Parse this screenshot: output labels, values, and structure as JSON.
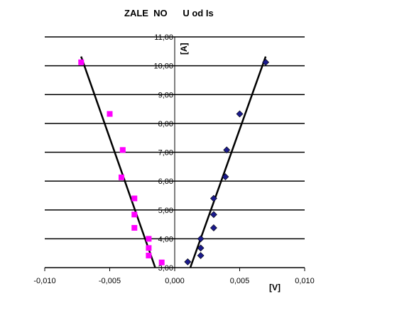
{
  "chart_data": {
    "type": "scatter",
    "title": "ZALE  NO      U od Is",
    "xlabel": "[V]",
    "ylabel": "[A]",
    "xlim": [
      -0.01,
      0.01
    ],
    "ylim": [
      3.0,
      11.0
    ],
    "x_ticks": [
      "-0,010",
      "-0,005",
      "0,000",
      "0,005",
      "0,010"
    ],
    "x_tick_values": [
      -0.01,
      -0.005,
      0.0,
      0.005,
      0.01
    ],
    "y_ticks": [
      "3,00",
      "4,00",
      "5,00",
      "6,00",
      "7,00",
      "8,00",
      "9,00",
      "10,00",
      "11,00"
    ],
    "y_tick_values": [
      3,
      4,
      5,
      6,
      7,
      8,
      9,
      10,
      11
    ],
    "grid": "horizontal",
    "legend": "none",
    "series": [
      {
        "marker": "square",
        "color": "#ff00ff",
        "points": [
          [
            -0.0072,
            10.12
          ],
          [
            -0.005,
            8.33
          ],
          [
            -0.004,
            7.08
          ],
          [
            -0.0041,
            6.13
          ],
          [
            -0.0031,
            5.4
          ],
          [
            -0.0031,
            4.84
          ],
          [
            -0.0031,
            4.38
          ],
          [
            -0.002,
            4.0
          ],
          [
            -0.002,
            3.68
          ],
          [
            -0.002,
            3.42
          ],
          [
            -0.001,
            3.18
          ]
        ]
      },
      {
        "marker": "diamond",
        "color": "#1a1a8c",
        "points": [
          [
            0.007,
            10.12
          ],
          [
            0.005,
            8.33
          ],
          [
            0.004,
            7.08
          ],
          [
            0.0039,
            6.15
          ],
          [
            0.003,
            5.4
          ],
          [
            0.003,
            4.84
          ],
          [
            0.003,
            4.38
          ],
          [
            0.002,
            4.0
          ],
          [
            0.002,
            3.68
          ],
          [
            0.002,
            3.42
          ],
          [
            0.001,
            3.2
          ]
        ]
      }
    ],
    "trendlines": [
      {
        "color": "#000000",
        "from": [
          -0.0072,
          10.32
        ],
        "to": [
          -0.0015,
          3.0
        ]
      },
      {
        "color": "#000000",
        "from": [
          0.0012,
          3.0
        ],
        "to": [
          0.007,
          10.32
        ]
      }
    ]
  }
}
